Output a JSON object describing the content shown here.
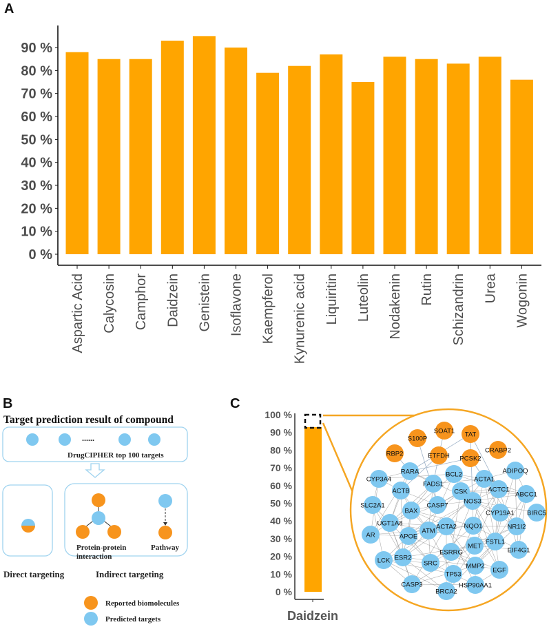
{
  "panels": {
    "a": "A",
    "b": "B",
    "c": "C"
  },
  "chart_data": [
    {
      "type": "bar",
      "panel": "A",
      "title": "",
      "xlabel": "",
      "ylabel": "",
      "categories": [
        "Aspartic Acid",
        "Calycosin",
        "Camphor",
        "Daidzein",
        "Genistein",
        "Isoflavone",
        "Kaempferol",
        "Kynurenic acid",
        "Liquiritin",
        "Luteolin",
        "Nodakenin",
        "Rutin",
        "Schizandrin",
        "Urea",
        "Wogonin"
      ],
      "values": [
        88,
        85,
        85,
        93,
        95,
        90,
        79,
        82,
        87,
        75,
        86,
        85,
        83,
        86,
        76
      ],
      "ylim": [
        0,
        100
      ],
      "yticks": [
        "0 %",
        "10 %",
        "20 %",
        "30 %",
        "40 %",
        "50 %",
        "60 %",
        "70 %",
        "80 %",
        "90 %"
      ],
      "bar_color": "#FFA500",
      "grid": false,
      "legend": "none"
    },
    {
      "type": "bar",
      "panel": "C",
      "categories": [
        "Daidzein"
      ],
      "values": [
        93
      ],
      "ylim": [
        0,
        100
      ],
      "yticks": [
        "0 %",
        "10 %",
        "20 %",
        "30 %",
        "40 %",
        "50 %",
        "60 %",
        "70 %",
        "80 %",
        "90 %",
        "100 %"
      ],
      "bar_color": "#FFA500",
      "highlight": "dashed box over top 7% (93%–100%)",
      "grid": false
    }
  ],
  "panel_b": {
    "title": "Target prediction result of compound",
    "ellipsis": "......",
    "top_box_label": "DrugCIPHER top 100 targets",
    "ppi_label_line1": "Protein-protein",
    "ppi_label_line2": "interaction",
    "pathway_label": "Pathway",
    "direct_label": "Direct targeting",
    "indirect_label": "Indirect targeting",
    "legend": [
      {
        "label": "Reported biomolecules",
        "color": "#F7941D"
      },
      {
        "label": "Predicted targets",
        "color": "#7FC8F0"
      }
    ]
  },
  "network": {
    "reported_color": "#F7941D",
    "predicted_color": "#7FC8F0",
    "reported": [
      "S100P",
      "SOAT1",
      "TAT",
      "RBP2",
      "ETFDH",
      "PCSK2",
      "CRABP2"
    ],
    "predicted": [
      "RARA",
      "BCL2",
      "ACTA1",
      "ADIPOQ",
      "CYP3A4",
      "FADS1",
      "ACTB",
      "CSK",
      "ACTC1",
      "ABCC1",
      "NOS3",
      "SLC2A1",
      "BAX",
      "CASP7",
      "CYP19A1",
      "BIRC5",
      "UGT1A8",
      "ATM",
      "ACTA2",
      "NQO1",
      "NR1I2",
      "AR",
      "APOE",
      "MET",
      "FSTL1",
      "EIF4G1",
      "ESRRG",
      "ESR2",
      "LCK",
      "SRC",
      "MMP2",
      "EGF",
      "TP53",
      "CASP3",
      "HSP90AA1",
      "BRCA2"
    ]
  }
}
